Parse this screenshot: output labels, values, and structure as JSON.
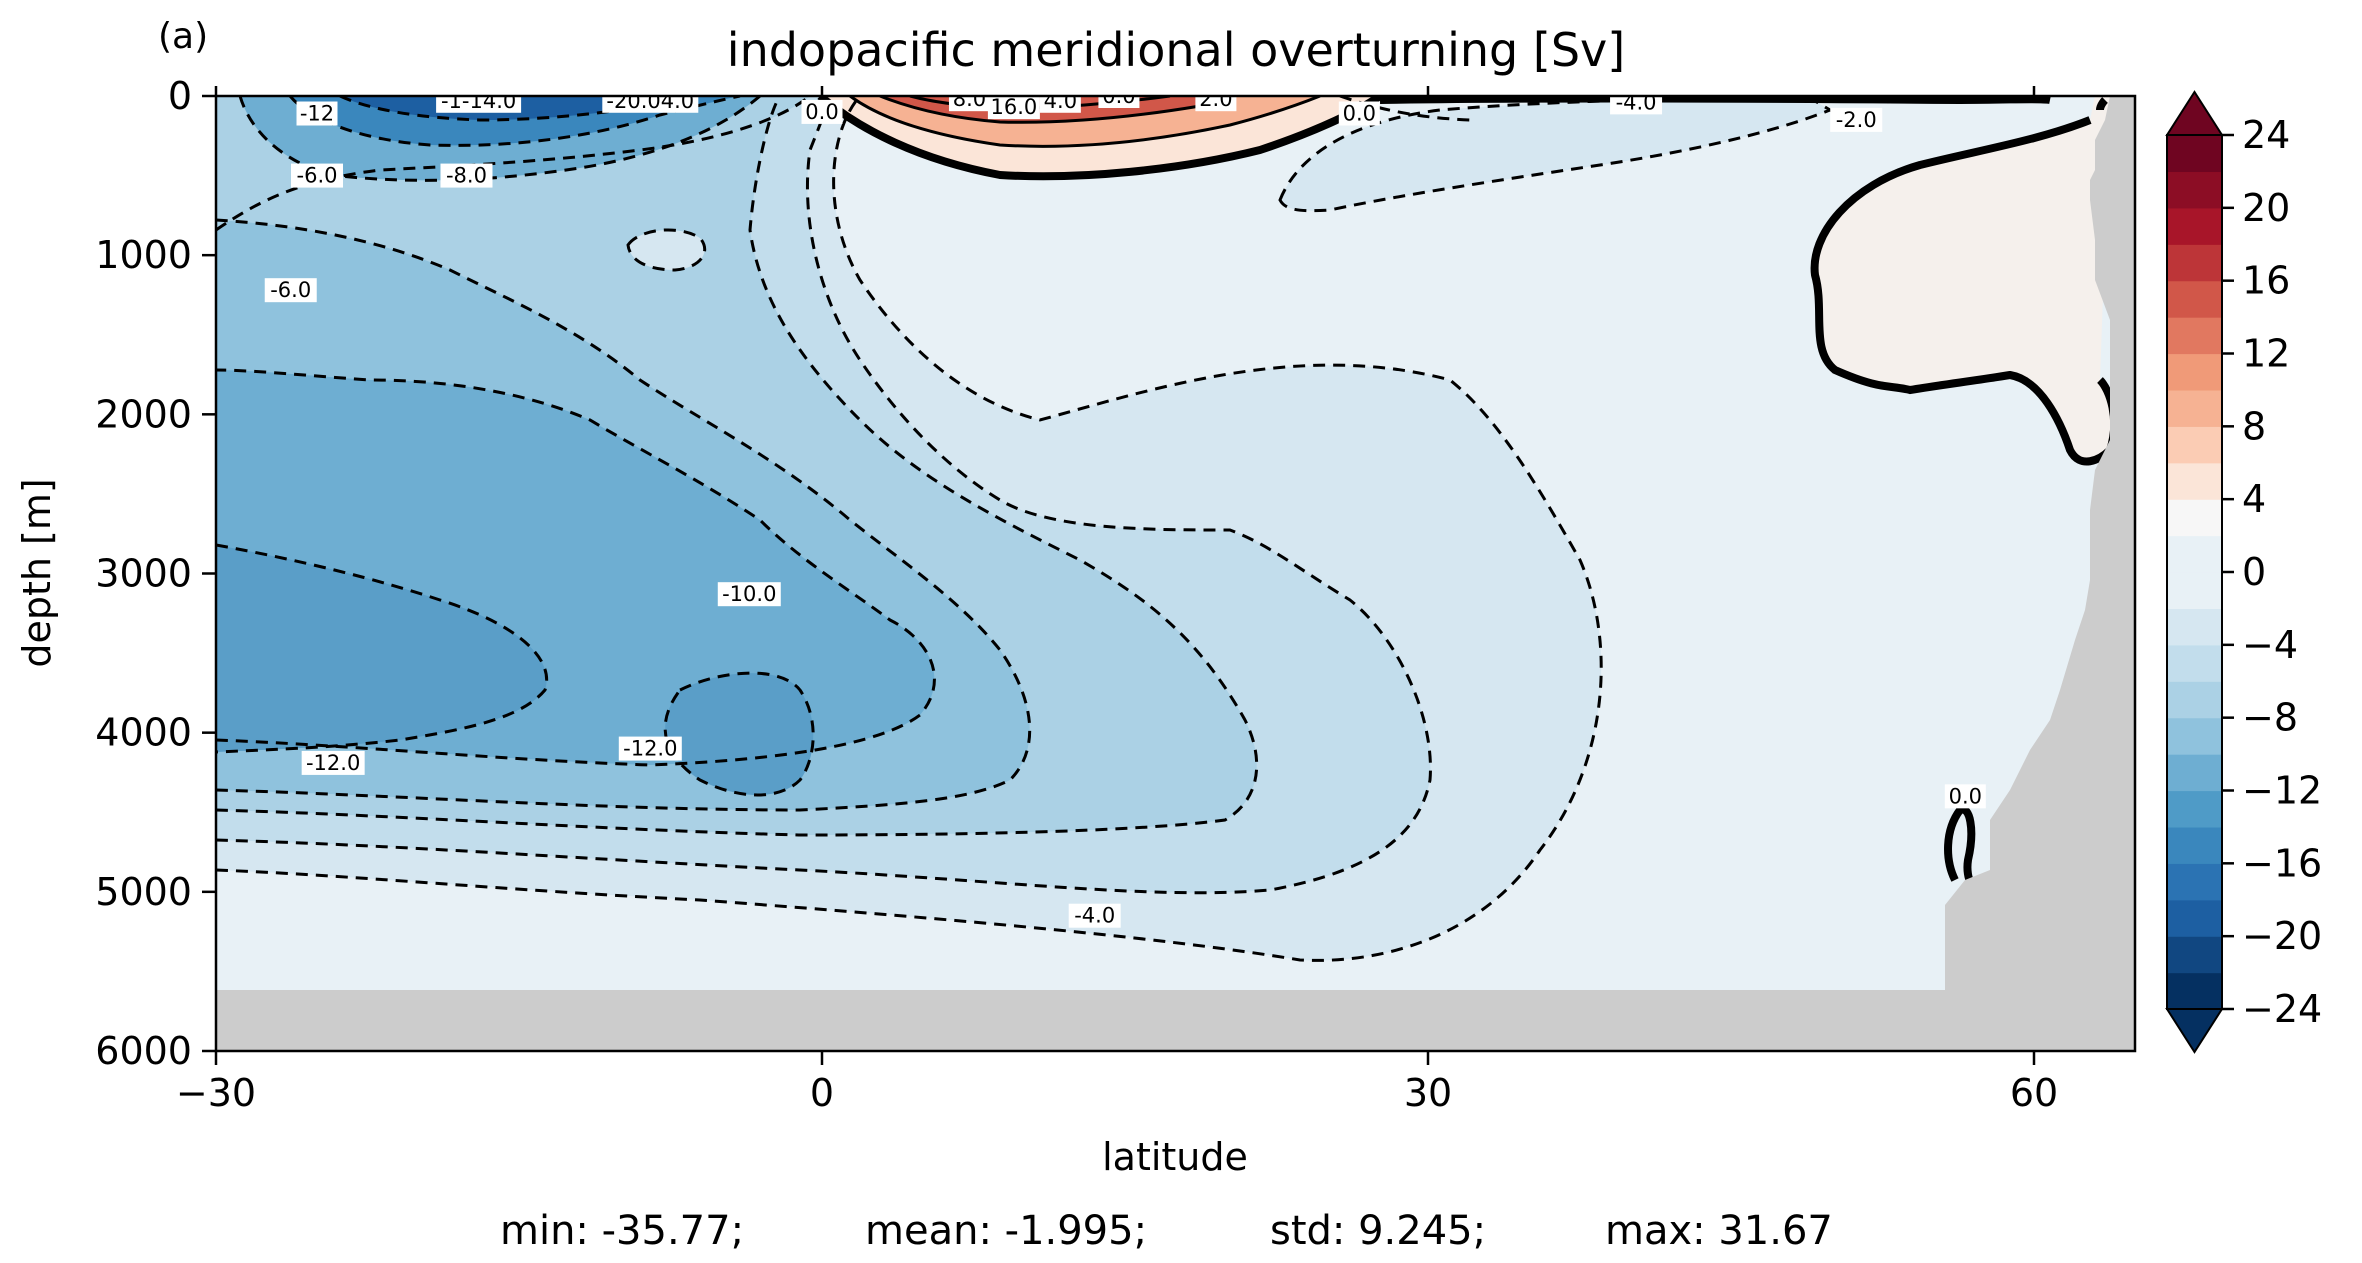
{
  "panel_label": "(a)",
  "chart_data": {
    "type": "contour",
    "title": "indopacific meridional overturning [Sv]",
    "xlabel": "latitude",
    "ylabel": "depth [m]",
    "xlim": [
      -30,
      65
    ],
    "ylim": [
      6000,
      0
    ],
    "x_ticks": [
      -30,
      0,
      30,
      60
    ],
    "x_tick_labels": [
      "−30",
      "0",
      "30",
      "60"
    ],
    "y_ticks": [
      0,
      1000,
      2000,
      3000,
      4000,
      5000,
      6000
    ],
    "y_tick_labels": [
      "0",
      "1000",
      "2000",
      "3000",
      "4000",
      "5000",
      "6000"
    ],
    "colormap": "RdBu_r",
    "color_levels": [
      -24,
      -22,
      -20,
      -18,
      -16,
      -14,
      -12,
      -10,
      -8,
      -6,
      -4,
      -2,
      0,
      2,
      4,
      6,
      8,
      10,
      12,
      14,
      16,
      18,
      20,
      22,
      24
    ],
    "colorbar_ticks": [
      24,
      20,
      16,
      12,
      8,
      4,
      0,
      -4,
      -8,
      -12,
      -16,
      -20,
      -24
    ],
    "colorbar_tick_labels": [
      "24",
      "20",
      "16",
      "12",
      "8",
      "4",
      "0",
      "−4",
      "−8",
      "−12",
      "−16",
      "−20",
      "−24"
    ],
    "colorbar_extend": "both",
    "colorbar_colors": [
      "#053061",
      "#114781",
      "#1d5fa2",
      "#2b73b3",
      "#3a87bd",
      "#4f9bc7",
      "#6eaed2",
      "#8fc2dd",
      "#abd1e5",
      "#c2ddec",
      "#d6e7f1",
      "#e8f1f6",
      "#f7f7f7",
      "#fbe5d8",
      "#fbccb4",
      "#f6b293",
      "#f09a78",
      "#e17860",
      "#d15749",
      "#bd3538",
      "#a81529",
      "#8c0d25",
      "#6f0521"
    ],
    "land_color": "#cccccc",
    "contour_labels": [
      {
        "text": "-1-14.0",
        "lat": -17,
        "depth": 30
      },
      {
        "text": "-20.04.0",
        "lat": -8.5,
        "depth": 30
      },
      {
        "text": "-12",
        "lat": -25,
        "depth": 110
      },
      {
        "text": "-6.0",
        "lat": -25,
        "depth": 500
      },
      {
        "text": "-8.0",
        "lat": -17.6,
        "depth": 500
      },
      {
        "text": "0.0",
        "lat": 0,
        "depth": 100
      },
      {
        "text": "8.0",
        "lat": 7.3,
        "depth": 20
      },
      {
        "text": "16.0",
        "lat": 9.5,
        "depth": 70
      },
      {
        "text": "4.0",
        "lat": 11.8,
        "depth": 30
      },
      {
        "text": "0.0",
        "lat": 14.7,
        "depth": 0
      },
      {
        "text": "2.0",
        "lat": 19.5,
        "depth": 20
      },
      {
        "text": "0.0",
        "lat": 26.6,
        "depth": 110
      },
      {
        "text": "-4.0",
        "lat": 40.3,
        "depth": 40
      },
      {
        "text": "-2.0",
        "lat": 51.2,
        "depth": 150
      },
      {
        "text": "-6.0",
        "lat": -26.3,
        "depth": 1220
      },
      {
        "text": "-10.0",
        "lat": -3.6,
        "depth": 3130
      },
      {
        "text": "-12.0",
        "lat": -8.5,
        "depth": 4100
      },
      {
        "text": "-12.0",
        "lat": -24.2,
        "depth": 4190
      },
      {
        "text": "-4.0",
        "lat": 13.5,
        "depth": 5150
      },
      {
        "text": "0.0",
        "lat": 56.6,
        "depth": 4400
      }
    ],
    "statistics": {
      "min": "min: -35.77;",
      "mean": "mean: -1.995;",
      "std": "std: 9.245;",
      "max": "max: 31.67"
    }
  }
}
